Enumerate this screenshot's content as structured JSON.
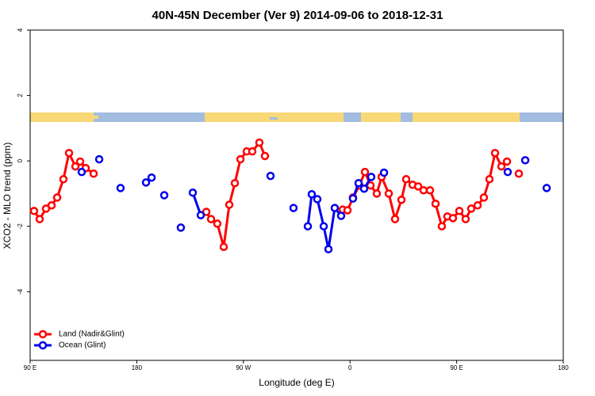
{
  "chart_data": {
    "type": "line",
    "title": "40N-45N December (Ver 9)   2014-09-06 to 2018-12-31",
    "x_label": "Longitude (deg E)",
    "y_label": "XCO2 - MLO trend (ppm)",
    "xlim": [
      90,
      540
    ],
    "ylim": [
      -6.1,
      4
    ],
    "xticks": [
      {
        "value": 90,
        "label": "90 E"
      },
      {
        "value": 180,
        "label": "180"
      },
      {
        "value": 270,
        "label": "90 W"
      },
      {
        "value": 360,
        "label": "0"
      },
      {
        "value": 450,
        "label": "90 E"
      },
      {
        "value": 540,
        "label": "180"
      }
    ],
    "yticks": [
      4,
      2,
      0,
      -2,
      -4
    ],
    "legend": "bottomleft",
    "series": [
      {
        "name": "Land (Nadir&Glint)",
        "color": "#ff0000",
        "x": [
          93.3,
          98.0,
          103.4,
          108.1,
          112.8,
          118.1,
          122.8,
          128.2,
          132.2,
          136.9,
          143.6,
          null,
          238.7,
          242.7,
          248.0,
          253.4,
          258.1,
          262.8,
          267.5,
          272.8,
          277.5,
          283.5,
          288.2,
          null,
          353.8,
          357.9,
          362.5,
          367.9,
          372.6,
          377.3,
          382.6,
          386.7,
          392.7,
          398.0,
          403.4,
          407.4,
          412.8,
          417.5,
          422.1,
          427.5,
          432.2,
          437.5,
          442.2,
          446.9,
          452.3,
          457.6,
          462.3,
          467.7,
          473.0,
          477.7,
          482.4,
          487.8,
          492.5,
          null,
          502.5
        ],
        "values": [
          -1.53,
          -1.78,
          -1.46,
          -1.36,
          -1.12,
          -0.56,
          0.24,
          -0.17,
          -0.02,
          -0.22,
          -0.39,
          null,
          -1.56,
          -1.78,
          -1.92,
          -2.63,
          -1.34,
          -0.68,
          0.05,
          0.29,
          0.29,
          0.56,
          0.15,
          null,
          -1.49,
          -1.51,
          -1.12,
          -0.75,
          -0.34,
          -0.75,
          -1.0,
          -0.49,
          -1.0,
          -1.78,
          -1.19,
          -0.56,
          -0.73,
          -0.78,
          -0.9,
          -0.9,
          -1.31,
          -2.0,
          -1.7,
          -1.75,
          -1.53,
          -1.78,
          -1.46,
          -1.36,
          -1.12,
          -0.56,
          0.24,
          -0.17,
          -0.02,
          null,
          -0.39
        ]
      },
      {
        "name": "Ocean (Glint)",
        "color": "#0000ee",
        "x": [
          133.5,
          null,
          148.3,
          null,
          166.3,
          null,
          187.8,
          null,
          192.5,
          null,
          203.2,
          null,
          217.2,
          null,
          227.3,
          234.0,
          null,
          292.9,
          null,
          312.3,
          null,
          324.4,
          327.7,
          332.4,
          337.8,
          341.8,
          347.1,
          352.5,
          null,
          362.5,
          367.2,
          371.9,
          377.9,
          null,
          388.7,
          null,
          493.1,
          null,
          507.9,
          null,
          526.0
        ],
        "values": [
          -0.34,
          null,
          0.05,
          null,
          -0.83,
          null,
          -0.66,
          null,
          -0.51,
          null,
          -1.05,
          null,
          -2.04,
          null,
          -0.97,
          -1.66,
          null,
          -0.46,
          null,
          -1.44,
          null,
          -2.0,
          -1.02,
          -1.17,
          -2.0,
          -2.7,
          -1.44,
          -1.68,
          null,
          -1.15,
          -0.68,
          -0.85,
          -0.49,
          null,
          -0.36,
          null,
          -0.34,
          null,
          0.02,
          null,
          -0.83
        ]
      }
    ]
  }
}
